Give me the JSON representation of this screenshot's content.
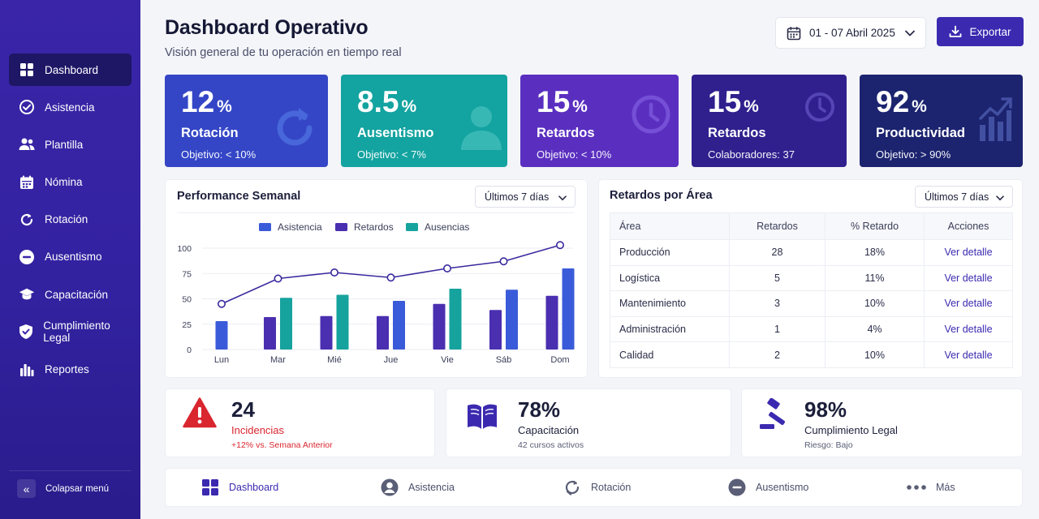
{
  "sidebar": {
    "items": [
      {
        "label": "Dashboard",
        "icon": "grid-icon"
      },
      {
        "label": "Asistencia",
        "icon": "check-circle-icon"
      },
      {
        "label": "Plantilla",
        "icon": "users-icon"
      },
      {
        "label": "Nómina",
        "icon": "calendar-icon"
      },
      {
        "label": "Rotación",
        "icon": "refresh-icon"
      },
      {
        "label": "Ausentismo",
        "icon": "minus-circle-icon"
      },
      {
        "label": "Capacitación",
        "icon": "graduation-cap-icon"
      },
      {
        "label": "Cumplimiento Legal",
        "icon": "shield-check-icon"
      },
      {
        "label": "Reportes",
        "icon": "bar-chart-icon"
      }
    ],
    "collapse_label": "Colapsar menú"
  },
  "header": {
    "title": "Dashboard Operativo",
    "subtitle": "Visión general de tu operación en tiempo real",
    "date_range": "01 - 07 Abril 2025",
    "export_label": "Exportar"
  },
  "kpis": [
    {
      "value": "12",
      "unit": "%",
      "label": "Rotación",
      "sub": "Objetivo: < 10%",
      "color": "#3446c6",
      "icon": "refresh-icon"
    },
    {
      "value": "8.5",
      "unit": "%",
      "label": "Ausentismo",
      "sub": "Objetivo: < 7%",
      "color": "#13a3a0",
      "icon": "user-icon"
    },
    {
      "value": "15",
      "unit": "%",
      "label": "Retardos",
      "sub": "Objetivo: < 10%",
      "color": "#5a2fc0",
      "icon": "clock-icon"
    },
    {
      "value": "15",
      "unit": "%",
      "label": "Retardos",
      "sub": "Colaboradores: 37",
      "color": "#2f208e",
      "icon": "clock-icon"
    },
    {
      "value": "92",
      "unit": "%",
      "label": "Productividad",
      "sub": "Objetivo: > 90%",
      "color": "#1c2470",
      "icon": "trend-chart-icon"
    }
  ],
  "performance": {
    "title": "Performance Semanal",
    "filter": "Últimos 7 días"
  },
  "chart_data": {
    "type": "bar",
    "categories": [
      "Lun",
      "Mar",
      "Mié",
      "Jue",
      "Vie",
      "Sáb",
      "Dom"
    ],
    "series": [
      {
        "name": "Asistencia",
        "type": "bar",
        "color": "#3a5bd9",
        "values": [
          28,
          null,
          null,
          48,
          null,
          59,
          80
        ]
      },
      {
        "name": "Retardos",
        "type": "bar",
        "color": "#4a2fb0",
        "values": [
          null,
          32,
          33,
          33,
          45,
          39,
          53
        ]
      },
      {
        "name": "Ausencias",
        "type": "bar",
        "color": "#16a39e",
        "values": [
          null,
          51,
          54,
          null,
          60,
          null,
          null
        ]
      },
      {
        "name": "",
        "type": "line",
        "color": "#3a2a9e",
        "values": [
          45,
          70,
          76,
          71,
          80,
          87,
          103
        ]
      }
    ],
    "ylim": [
      0,
      100
    ],
    "yticks": [
      0,
      25,
      50,
      75,
      100
    ],
    "legend": "top-center",
    "grid": true
  },
  "retardos": {
    "title": "Retardos por Área",
    "filter": "Últimos 7 días",
    "columns": [
      "Área",
      "Retardos",
      "% Retardo",
      "Acciones"
    ],
    "rows": [
      {
        "area": "Producción",
        "retardos": "28",
        "pct": "18%",
        "action": "Ver detalle"
      },
      {
        "area": "Logística",
        "retardos": "5",
        "pct": "11%",
        "action": "Ver detalle"
      },
      {
        "area": "Mantenimiento",
        "retardos": "3",
        "pct": "10%",
        "action": "Ver detalle"
      },
      {
        "area": "Administración",
        "retardos": "1",
        "pct": "4%",
        "action": "Ver detalle"
      },
      {
        "area": "Calidad",
        "retardos": "2",
        "pct": "10%",
        "action": "Ver detalle"
      }
    ]
  },
  "stats": [
    {
      "value": "24",
      "label": "Incidencias",
      "sub": "+12% vs. Semana Anterior",
      "icon": "warning-icon",
      "accent": "#d9262f"
    },
    {
      "value": "78%",
      "label": "Capacitación",
      "sub": "42 cursos activos",
      "icon": "book-icon",
      "accent": "#3b2ab0"
    },
    {
      "value": "98%",
      "label": "Cumplimiento Legal",
      "sub": "Riesgo: Bajo",
      "icon": "gavel-icon",
      "accent": "#3b2ab0"
    }
  ],
  "bottom_nav": [
    {
      "label": "Dashboard",
      "icon": "grid-icon"
    },
    {
      "label": "Asistencia",
      "icon": "user-circle-icon"
    },
    {
      "label": "Rotación",
      "icon": "refresh-icon"
    },
    {
      "label": "Ausentismo",
      "icon": "minus-circle-icon"
    },
    {
      "label": "Más",
      "icon": "more-dots-icon"
    }
  ]
}
